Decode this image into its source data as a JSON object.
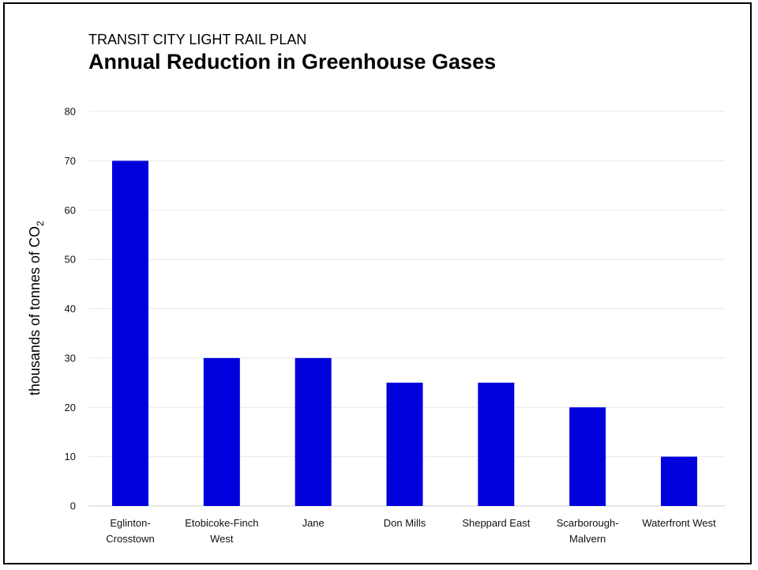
{
  "chart_data": {
    "type": "bar",
    "subtitle": "TRANSIT CITY LIGHT RAIL PLAN",
    "title": "Annual Reduction in Greenhouse Gases",
    "ylabel": "thousands of tonnes of CO",
    "ylabel_subscript": "2",
    "xlabel": "",
    "ylim": [
      0,
      80
    ],
    "yticks": [
      0,
      10,
      20,
      30,
      40,
      50,
      60,
      70,
      80
    ],
    "grid": true,
    "legend": "none",
    "bar_color": "#0000dd",
    "categories": [
      [
        "Eglinton-",
        "Crosstown"
      ],
      [
        "Etobicoke-Finch",
        "West"
      ],
      [
        "Jane"
      ],
      [
        "Don Mills"
      ],
      [
        "Sheppard East"
      ],
      [
        "Scarborough-",
        "Malvern"
      ],
      [
        "Waterfront West"
      ]
    ],
    "values": [
      70,
      30,
      30,
      25,
      25,
      20,
      10
    ]
  }
}
